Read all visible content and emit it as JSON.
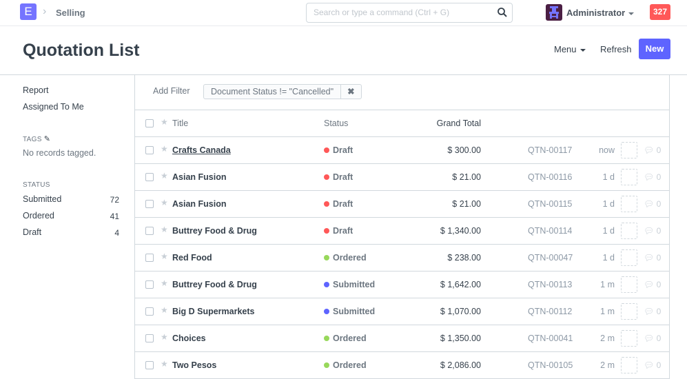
{
  "topbar": {
    "app_letter": "E",
    "breadcrumb": "Selling",
    "search_placeholder": "Search or type a command (Ctrl + G)",
    "user": "Administrator",
    "notifications": "327"
  },
  "page": {
    "title": "Quotation List",
    "menu": "Menu",
    "refresh": "Refresh",
    "new": "New"
  },
  "sidebar": {
    "links": [
      "Report",
      "Assigned To Me"
    ],
    "tags_heading": "TAGS",
    "tags_empty": "No records tagged.",
    "status_heading": "STATUS",
    "statuses": [
      {
        "label": "Submitted",
        "count": "72"
      },
      {
        "label": "Ordered",
        "count": "41"
      },
      {
        "label": "Draft",
        "count": "4"
      }
    ]
  },
  "filters": {
    "add_filter": "Add Filter",
    "active": "Document Status != \"Cancelled\"",
    "remove": "✖"
  },
  "columns": {
    "title": "Title",
    "status": "Status",
    "grand_total": "Grand Total"
  },
  "status_colors": {
    "Draft": "#ff5858",
    "Ordered": "#98d85b",
    "Submitted": "#5e64ff"
  },
  "rows": [
    {
      "title": "Crafts Canada",
      "status": "Draft",
      "total": "$ 300.00",
      "id": "QTN-00117",
      "time": "now",
      "comments": "0"
    },
    {
      "title": "Asian Fusion",
      "status": "Draft",
      "total": "$ 21.00",
      "id": "QTN-00116",
      "time": "1 d",
      "comments": "0"
    },
    {
      "title": "Asian Fusion",
      "status": "Draft",
      "total": "$ 21.00",
      "id": "QTN-00115",
      "time": "1 d",
      "comments": "0"
    },
    {
      "title": "Buttrey Food & Drug",
      "status": "Draft",
      "total": "$ 1,340.00",
      "id": "QTN-00114",
      "time": "1 d",
      "comments": "0"
    },
    {
      "title": "Red Food",
      "status": "Ordered",
      "total": "$ 238.00",
      "id": "QTN-00047",
      "time": "1 d",
      "comments": "0"
    },
    {
      "title": "Buttrey Food & Drug",
      "status": "Submitted",
      "total": "$ 1,642.00",
      "id": "QTN-00113",
      "time": "1 m",
      "comments": "0"
    },
    {
      "title": "Big D Supermarkets",
      "status": "Submitted",
      "total": "$ 1,070.00",
      "id": "QTN-00112",
      "time": "1 m",
      "comments": "0"
    },
    {
      "title": "Choices",
      "status": "Ordered",
      "total": "$ 1,350.00",
      "id": "QTN-00041",
      "time": "2 m",
      "comments": "0"
    },
    {
      "title": "Two Pesos",
      "status": "Ordered",
      "total": "$ 2,086.00",
      "id": "QTN-00105",
      "time": "2 m",
      "comments": "0"
    }
  ]
}
